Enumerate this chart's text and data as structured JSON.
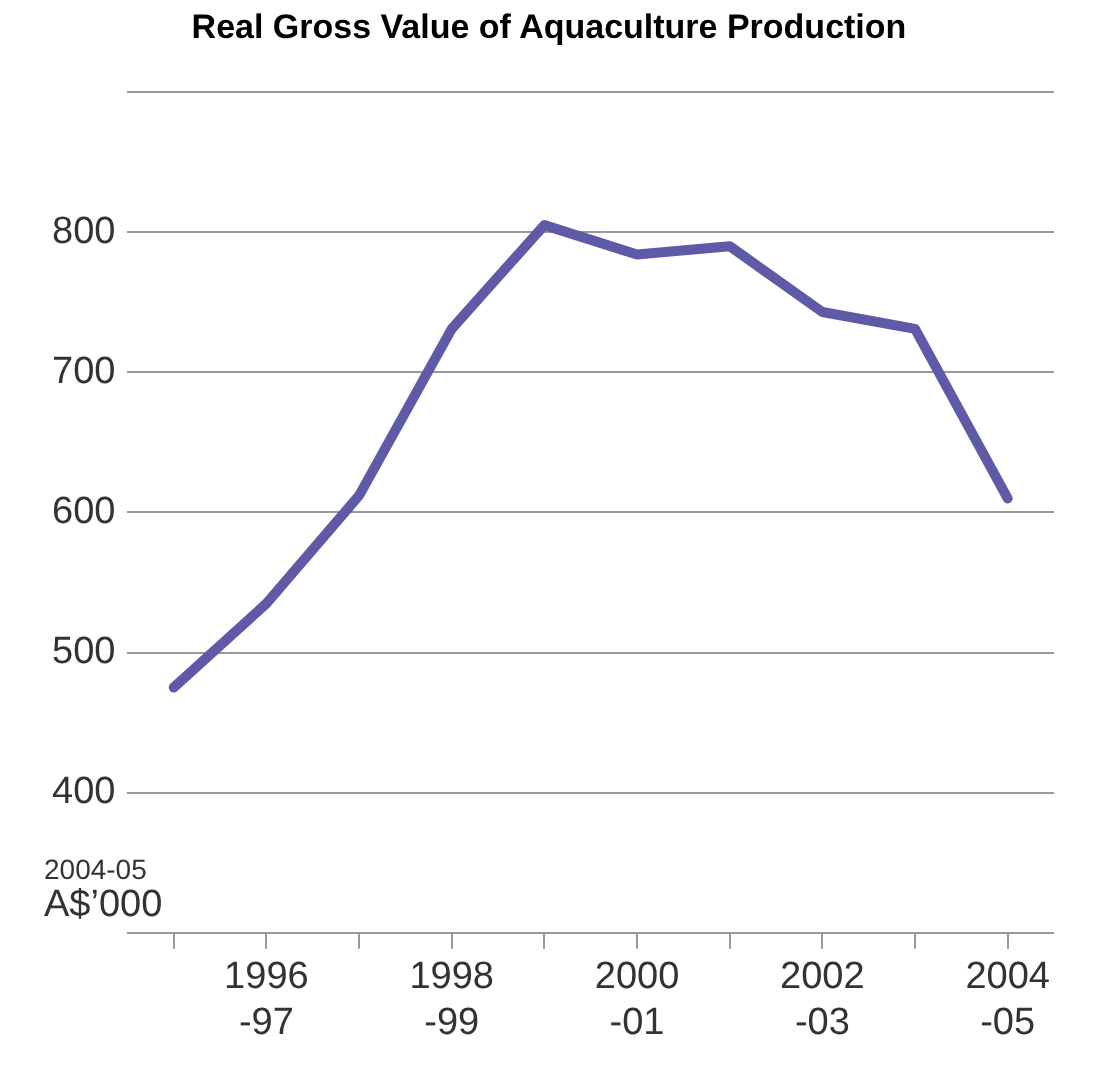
{
  "chart_data": {
    "type": "line",
    "title": "Real Gross Value of Aquaculture Production",
    "ylabel": "2004-05\nA$’000",
    "categories": [
      null,
      "1996-97",
      null,
      "1998-99",
      null,
      "2000-01",
      null,
      "2002-03",
      null,
      "2004-05"
    ],
    "series": [
      {
        "color": "#5f5aa8",
        "values": [
          475,
          535,
          612,
          731,
          805,
          784,
          790,
          743,
          731,
          610
        ]
      }
    ],
    "ylim": [
      300,
      900
    ],
    "yticks": [
      {
        "value": 300,
        "label": null
      },
      400,
      500,
      600,
      700,
      800,
      {
        "value": 900,
        "label": null
      }
    ],
    "grid": "y",
    "legend": false,
    "marker": "none",
    "line_style": "solid"
  }
}
